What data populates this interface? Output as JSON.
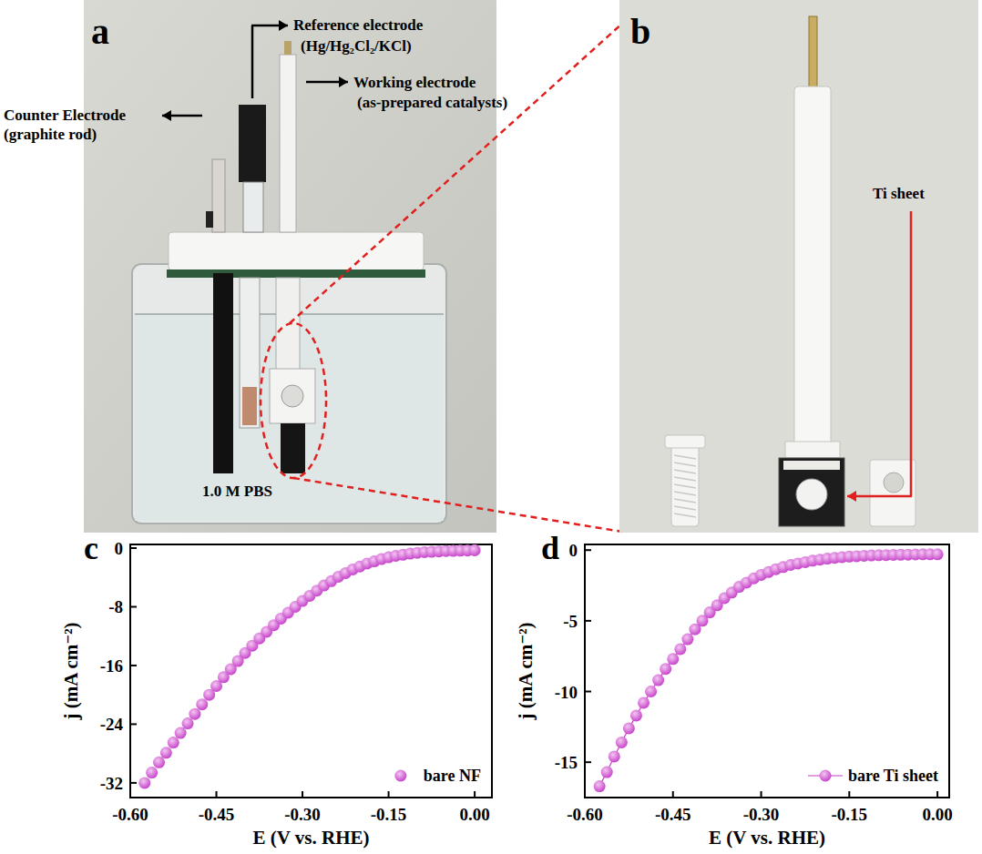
{
  "figure": {
    "panel_a": {
      "letter": "a",
      "counter_electrode": [
        "Counter Electrode",
        "(graphite rod)"
      ],
      "reference_electrode": [
        "Reference electrode",
        "(Hg/Hg₂Cl₂/KCl)"
      ],
      "working_electrode": [
        "Working electrode",
        "(as-prepared catalysts)"
      ],
      "electrolyte": "1.0 M PBS"
    },
    "panel_b": {
      "letter": "b",
      "label": "Ti sheet"
    },
    "panel_c": {
      "letter": "c"
    },
    "panel_d": {
      "letter": "d"
    }
  },
  "chart_data": [
    {
      "type": "scatter",
      "x_label": "E (V vs. RHE)",
      "y_label": "j (mA cm⁻²)",
      "x": [
        -0.575,
        -0.5625,
        -0.55,
        -0.5375,
        -0.525,
        -0.5125,
        -0.5,
        -0.4875,
        -0.475,
        -0.4625,
        -0.45,
        -0.4375,
        -0.425,
        -0.4125,
        -0.4,
        -0.3875,
        -0.375,
        -0.3625,
        -0.35,
        -0.3375,
        -0.325,
        -0.3125,
        -0.3,
        -0.2875,
        -0.275,
        -0.2625,
        -0.25,
        -0.2375,
        -0.225,
        -0.2125,
        -0.2,
        -0.1875,
        -0.175,
        -0.1625,
        -0.15,
        -0.1375,
        -0.125,
        -0.1125,
        -0.1,
        -0.0875,
        -0.075,
        -0.0625,
        -0.05,
        -0.0375,
        -0.025,
        -0.0125,
        0
      ],
      "series": [
        {
          "name": "bare NF",
          "color": "#c33bc7",
          "marker": "circle",
          "line_style": "none",
          "values": [
            -32.0,
            -30.6,
            -29.2,
            -27.9,
            -26.5,
            -25.2,
            -23.9,
            -22.6,
            -21.3,
            -20.0,
            -18.8,
            -17.6,
            -16.5,
            -15.4,
            -14.3,
            -13.3,
            -12.3,
            -11.4,
            -10.5,
            -9.6,
            -8.8,
            -8.0,
            -7.2,
            -6.5,
            -5.8,
            -5.1,
            -4.5,
            -3.9,
            -3.4,
            -2.9,
            -2.5,
            -2.1,
            -1.8,
            -1.5,
            -1.25,
            -1.05,
            -0.9,
            -0.75,
            -0.65,
            -0.55,
            -0.5,
            -0.45,
            -0.4,
            -0.38,
            -0.35,
            -0.33,
            -0.3
          ]
        }
      ],
      "xlim": [
        -0.6,
        0.03
      ],
      "xticks": [
        {
          "value": -0.6,
          "label": "-0.60"
        },
        -0.45,
        {
          "value": -0.3,
          "label": "-0.30"
        },
        -0.15,
        {
          "value": 0,
          "label": "0.00"
        }
      ],
      "ylim": [
        -34,
        0.5
      ],
      "yticks": [
        0,
        -8,
        -16,
        -24,
        -32
      ],
      "grid": false,
      "legend": "lower right"
    },
    {
      "type": "line",
      "x_label": "E (V vs. RHE)",
      "y_label": "j (mA cm⁻²)",
      "x": [
        -0.575,
        -0.5625,
        -0.55,
        -0.5375,
        -0.525,
        -0.5125,
        -0.5,
        -0.4875,
        -0.475,
        -0.4625,
        -0.45,
        -0.4375,
        -0.425,
        -0.4125,
        -0.4,
        -0.3875,
        -0.375,
        -0.3625,
        -0.35,
        -0.3375,
        -0.325,
        -0.3125,
        -0.3,
        -0.2875,
        -0.275,
        -0.2625,
        -0.25,
        -0.2375,
        -0.225,
        -0.2125,
        -0.2,
        -0.1875,
        -0.175,
        -0.1625,
        -0.15,
        -0.1375,
        -0.125,
        -0.1125,
        -0.1,
        -0.0875,
        -0.075,
        -0.0625,
        -0.05,
        -0.0375,
        -0.025,
        -0.0125,
        0
      ],
      "series": [
        {
          "name": "bare Ti sheet",
          "color": "#c33bc7",
          "marker": "circle",
          "line_style": "solid",
          "values": [
            -16.7,
            -15.7,
            -14.6,
            -13.6,
            -12.6,
            -11.7,
            -10.8,
            -10.0,
            -9.2,
            -8.4,
            -7.7,
            -7.0,
            -6.3,
            -5.6,
            -5.0,
            -4.4,
            -3.9,
            -3.4,
            -3.0,
            -2.6,
            -2.3,
            -2.0,
            -1.75,
            -1.55,
            -1.35,
            -1.2,
            -1.05,
            -0.95,
            -0.85,
            -0.75,
            -0.68,
            -0.6,
            -0.55,
            -0.5,
            -0.46,
            -0.43,
            -0.4,
            -0.38,
            -0.36,
            -0.35,
            -0.34,
            -0.33,
            -0.32,
            -0.31,
            -0.3,
            -0.3,
            -0.3
          ]
        }
      ],
      "xlim": [
        -0.6,
        0.02
      ],
      "xticks": [
        {
          "value": -0.6,
          "label": "-0.60"
        },
        -0.45,
        {
          "value": -0.3,
          "label": "-0.30"
        },
        -0.15,
        {
          "value": 0,
          "label": "0.00"
        }
      ],
      "ylim": [
        -17.5,
        0.4
      ],
      "yticks": [
        0,
        -5,
        -10,
        -15
      ],
      "grid": false,
      "legend": "lower right"
    }
  ]
}
